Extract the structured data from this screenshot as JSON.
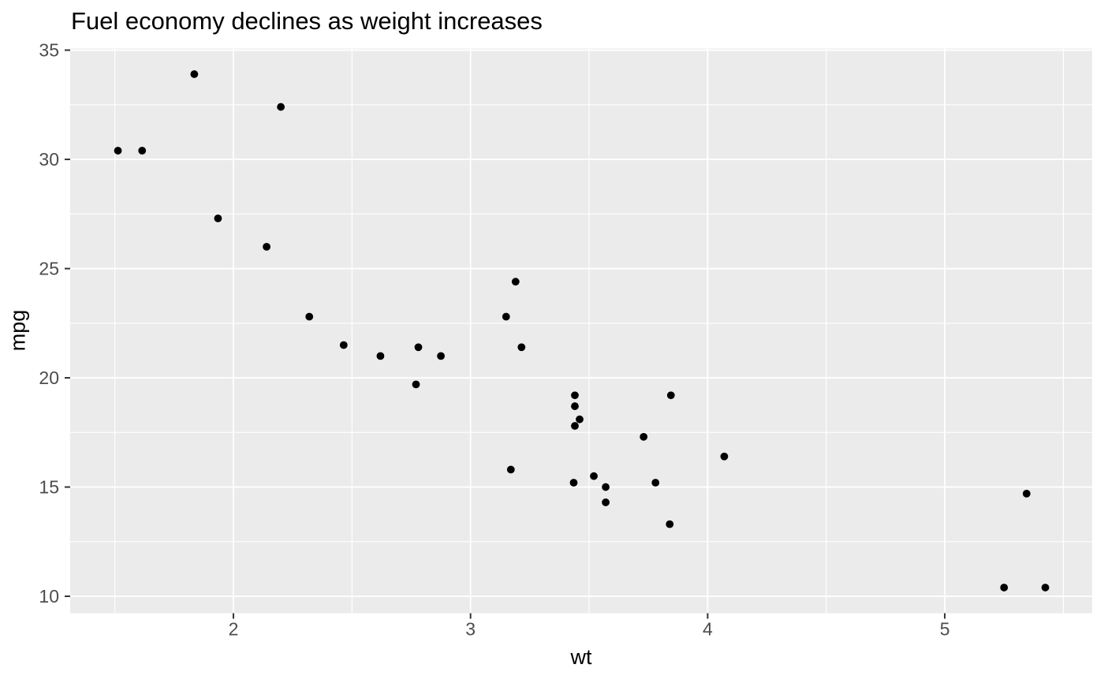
{
  "chart_data": {
    "type": "scatter",
    "title": "Fuel economy declines as weight increases",
    "xlabel": "wt",
    "ylabel": "mpg",
    "xlim": [
      1.3116,
      5.6216
    ],
    "ylim": [
      9.2255,
      35.0745
    ],
    "x_major_ticks": [
      2,
      3,
      4,
      5
    ],
    "x_minor_ticks": [
      1.5,
      2.5,
      3.5,
      4.5,
      5.5
    ],
    "y_major_ticks": [
      10,
      15,
      20,
      25,
      30,
      35
    ],
    "y_minor_ticks": [
      12.5,
      17.5,
      22.5,
      27.5,
      32.5
    ],
    "grid": "on",
    "legend": "none",
    "points": [
      [
        2.62,
        21.0
      ],
      [
        2.875,
        21.0
      ],
      [
        2.32,
        22.8
      ],
      [
        3.215,
        21.4
      ],
      [
        3.44,
        18.7
      ],
      [
        3.46,
        18.1
      ],
      [
        3.57,
        14.3
      ],
      [
        3.19,
        24.4
      ],
      [
        3.15,
        22.8
      ],
      [
        3.44,
        19.2
      ],
      [
        3.44,
        17.8
      ],
      [
        4.07,
        16.4
      ],
      [
        3.73,
        17.3
      ],
      [
        3.78,
        15.2
      ],
      [
        5.25,
        10.4
      ],
      [
        5.424,
        10.4
      ],
      [
        5.345,
        14.7
      ],
      [
        2.2,
        32.4
      ],
      [
        1.615,
        30.4
      ],
      [
        1.835,
        33.9
      ],
      [
        2.465,
        21.5
      ],
      [
        3.52,
        15.5
      ],
      [
        3.435,
        15.2
      ],
      [
        3.84,
        13.3
      ],
      [
        3.845,
        19.2
      ],
      [
        1.935,
        27.3
      ],
      [
        2.14,
        26.0
      ],
      [
        1.513,
        30.4
      ],
      [
        3.17,
        15.8
      ],
      [
        2.77,
        19.7
      ],
      [
        3.57,
        15.0
      ],
      [
        2.78,
        21.4
      ]
    ],
    "style": {
      "background": "#FFFFFF",
      "panel_bg": "#EBEBEB",
      "grid_color": "#FFFFFF",
      "point_color": "#000000",
      "tick_mark_color": "#333333",
      "tick_label_color": "#4D4D4D",
      "title_color": "#000000"
    }
  }
}
